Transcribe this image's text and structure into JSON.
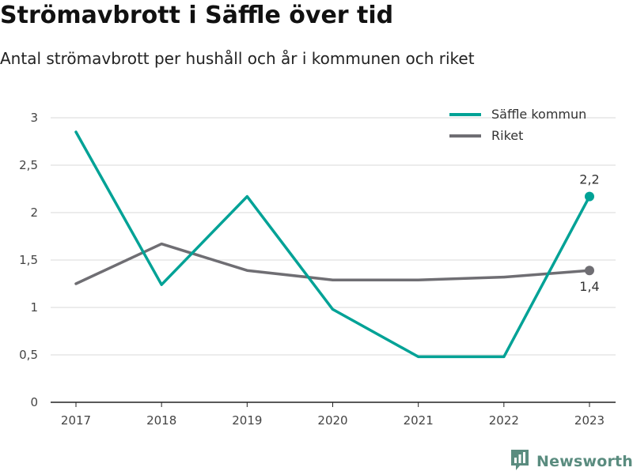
{
  "title": "Strömavbrott i Säffle över tid",
  "subtitle": "Antal strömavbrott per hushåll och år i kommunen och riket",
  "brand": {
    "name": "Newsworthy",
    "icon": "newsworthy-logo-icon"
  },
  "colors": {
    "saffle": "#00a296",
    "riket": "#6f6e73",
    "grid": "#d9d9d9",
    "axis": "#222222"
  },
  "chart_data": {
    "type": "line",
    "title": "Strömavbrott i Säffle över tid",
    "subtitle": "Antal strömavbrott per hushåll och år i kommunen och riket",
    "xlabel": "",
    "ylabel": "",
    "x": [
      "2017",
      "2018",
      "2019",
      "2020",
      "2021",
      "2022",
      "2023"
    ],
    "ylim": [
      0,
      3
    ],
    "yticks": [
      0,
      0.5,
      1,
      1.5,
      2,
      2.5,
      3
    ],
    "ytick_labels": [
      "0",
      "0,5",
      "1",
      "1,5",
      "2",
      "2,5",
      "3"
    ],
    "grid": true,
    "legend_position": "top-right",
    "series": [
      {
        "name": "Säffle kommun",
        "color": "#00a296",
        "values": [
          2.85,
          1.24,
          2.17,
          0.98,
          0.48,
          0.48,
          2.17
        ],
        "end_label": "2,2"
      },
      {
        "name": "Riket",
        "color": "#6f6e73",
        "values": [
          1.25,
          1.67,
          1.39,
          1.29,
          1.29,
          1.32,
          1.39
        ],
        "end_label": "1,4"
      }
    ]
  }
}
